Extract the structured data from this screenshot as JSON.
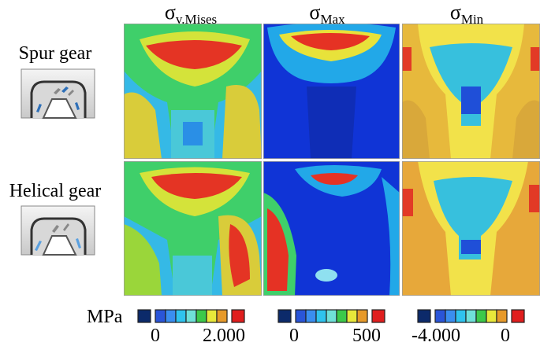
{
  "columns": [
    {
      "symbol": "σ",
      "subscript": "v.Mises"
    },
    {
      "symbol": "σ",
      "subscript": "Max"
    },
    {
      "symbol": "σ",
      "subscript": "Min"
    }
  ],
  "rows": [
    {
      "label": "Spur gear"
    },
    {
      "label": "Helical gear"
    }
  ],
  "legend": {
    "unit": "MPa",
    "scales": [
      {
        "min": "0",
        "max": "2.000"
      },
      {
        "min": "0",
        "max": "500"
      },
      {
        "min": "-4.000",
        "max": "0"
      }
    ]
  }
}
